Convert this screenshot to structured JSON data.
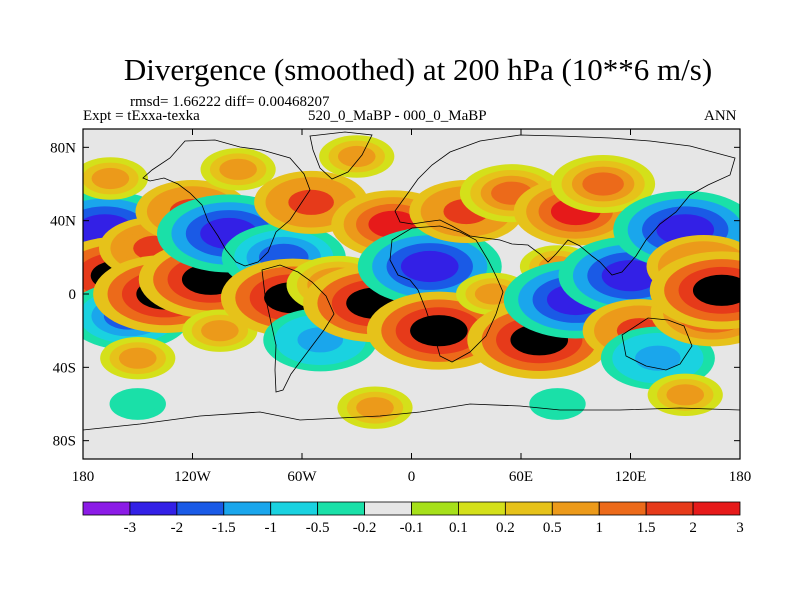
{
  "header": {
    "title": "Divergence (smoothed) at 200 hPa (10**6 m/s)",
    "stats": "rmsd= 1.66222 diff= 0.00468207",
    "experiment": "Expt = tExxa-texka",
    "comparison": "520_0_MaBP - 000_0_MaBP",
    "season": "ANN"
  },
  "chart_data": {
    "type": "heatmap",
    "title": "Divergence (smoothed) at 200 hPa (10**6 m/s)",
    "projection": "cylindrical-equidistant",
    "xlim": [
      -180,
      180
    ],
    "ylim": [
      -90,
      90
    ],
    "x_ticks": [
      {
        "value": -180,
        "label": "180"
      },
      {
        "value": -120,
        "label": "120W"
      },
      {
        "value": -60,
        "label": "60W"
      },
      {
        "value": 0,
        "label": "0"
      },
      {
        "value": 60,
        "label": "60E"
      },
      {
        "value": 120,
        "label": "120E"
      },
      {
        "value": 180,
        "label": "180"
      }
    ],
    "y_ticks": [
      {
        "value": 80,
        "label": "80N"
      },
      {
        "value": 40,
        "label": "40N"
      },
      {
        "value": 0,
        "label": "0"
      },
      {
        "value": -40,
        "label": "40S"
      },
      {
        "value": -80,
        "label": "80S"
      }
    ],
    "colorbar": {
      "labels": [
        "-3",
        "-2",
        "-1.5",
        "-1",
        "-0.5",
        "-0.2",
        "-0.1",
        "0.1",
        "0.2",
        "0.5",
        "1",
        "1.5",
        "2",
        "3"
      ],
      "colors": [
        "#8b1be6",
        "#3320e6",
        "#1a5ae6",
        "#1aa6ec",
        "#1ad2e0",
        "#1ae0a8",
        "#e6e6e6",
        "#a6e01a",
        "#d4e01a",
        "#e6c21a",
        "#ec9a1a",
        "#ec6a1a",
        "#e63a1a",
        "#e61a1a"
      ]
    },
    "field_blobs": [
      {
        "lon": -168,
        "lat": 35,
        "value": -3
      },
      {
        "lon": -165,
        "lat": 63,
        "value": 0.5
      },
      {
        "lon": -160,
        "lat": 10,
        "value": 3
      },
      {
        "lon": -155,
        "lat": -12,
        "value": -2
      },
      {
        "lon": -150,
        "lat": -35,
        "value": 0.5
      },
      {
        "lon": -140,
        "lat": 25,
        "value": 1.5
      },
      {
        "lon": -135,
        "lat": 0,
        "value": 3
      },
      {
        "lon": -120,
        "lat": 45,
        "value": 1.5
      },
      {
        "lon": -110,
        "lat": 8,
        "value": 3
      },
      {
        "lon": -105,
        "lat": -20,
        "value": 0.5
      },
      {
        "lon": -100,
        "lat": 33,
        "value": -3
      },
      {
        "lon": -95,
        "lat": 68,
        "value": 0.5
      },
      {
        "lon": -70,
        "lat": 20,
        "value": -2
      },
      {
        "lon": -65,
        "lat": -2,
        "value": 3
      },
      {
        "lon": -55,
        "lat": 50,
        "value": 1.5
      },
      {
        "lon": -50,
        "lat": -25,
        "value": -1.5
      },
      {
        "lon": -40,
        "lat": 5,
        "value": 1
      },
      {
        "lon": -30,
        "lat": 75,
        "value": 0.5
      },
      {
        "lon": -20,
        "lat": -5,
        "value": 3
      },
      {
        "lon": -10,
        "lat": 38,
        "value": 2
      },
      {
        "lon": 10,
        "lat": 15,
        "value": -3
      },
      {
        "lon": 15,
        "lat": -20,
        "value": 3
      },
      {
        "lon": 30,
        "lat": 45,
        "value": 1.5
      },
      {
        "lon": 45,
        "lat": 0,
        "value": 0.5
      },
      {
        "lon": 55,
        "lat": 55,
        "value": 1
      },
      {
        "lon": 70,
        "lat": -25,
        "value": 3
      },
      {
        "lon": 80,
        "lat": 15,
        "value": 0.5
      },
      {
        "lon": 90,
        "lat": -3,
        "value": -3
      },
      {
        "lon": 90,
        "lat": 45,
        "value": 2
      },
      {
        "lon": 105,
        "lat": 60,
        "value": 1
      },
      {
        "lon": 120,
        "lat": 10,
        "value": -3
      },
      {
        "lon": 125,
        "lat": -20,
        "value": 1.5
      },
      {
        "lon": 135,
        "lat": -35,
        "value": -1.5
      },
      {
        "lon": 150,
        "lat": 35,
        "value": -3
      },
      {
        "lon": 160,
        "lat": 15,
        "value": 1.5
      },
      {
        "lon": 165,
        "lat": -10,
        "value": 2
      },
      {
        "lon": 170,
        "lat": 2,
        "value": 3
      },
      {
        "lon": -150,
        "lat": -60,
        "value": -0.5
      },
      {
        "lon": -20,
        "lat": -62,
        "value": 0.5
      },
      {
        "lon": 80,
        "lat": -60,
        "value": -0.5
      },
      {
        "lon": 150,
        "lat": -55,
        "value": 0.5
      }
    ]
  }
}
